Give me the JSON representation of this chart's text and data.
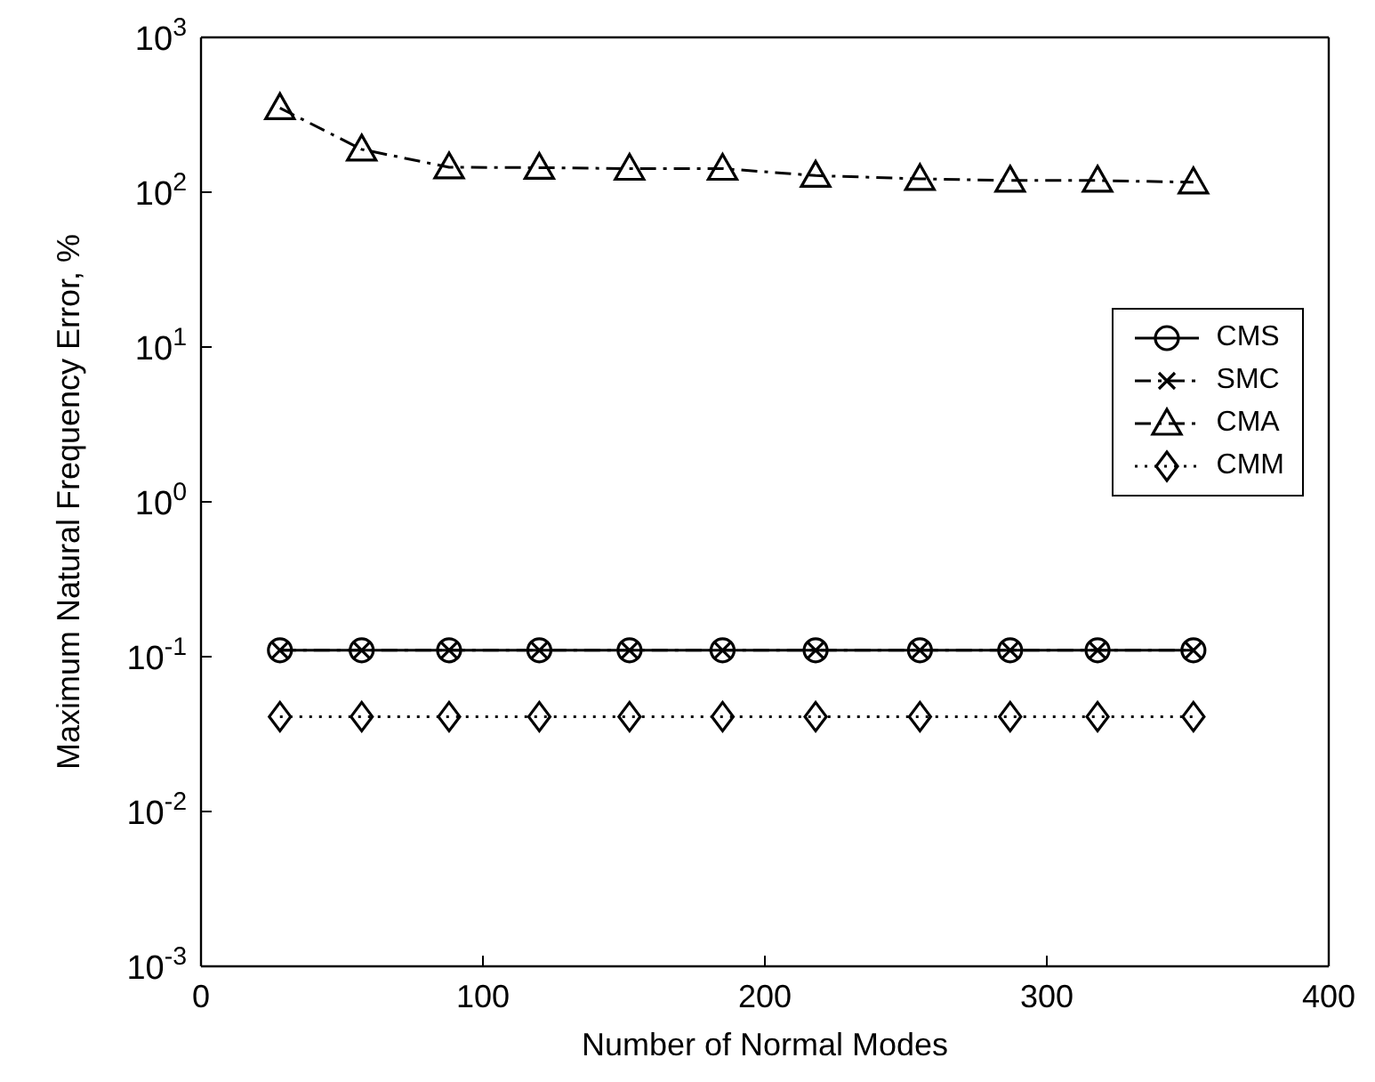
{
  "chart_data": {
    "type": "line",
    "xlabel": "Number of Normal Modes",
    "ylabel": "Maximum Natural Frequency Error, %",
    "x": [
      28,
      57,
      88,
      120,
      152,
      185,
      218,
      255,
      287,
      318,
      352
    ],
    "series": [
      {
        "name": "CMS",
        "color": "#000000",
        "marker": "circle",
        "line_style": "solid",
        "values": [
          0.11,
          0.11,
          0.11,
          0.11,
          0.11,
          0.11,
          0.11,
          0.11,
          0.11,
          0.11,
          0.11
        ]
      },
      {
        "name": "SMC",
        "color": "#000000",
        "marker": "cross",
        "line_style": "dashed",
        "values": [
          0.11,
          0.11,
          0.11,
          0.11,
          0.11,
          0.11,
          0.11,
          0.11,
          0.11,
          0.11,
          0.11
        ]
      },
      {
        "name": "CMA",
        "color": "#000000",
        "marker": "triangle",
        "line_style": "dashed",
        "values": [
          350,
          189,
          145,
          144,
          142,
          142,
          128,
          122,
          119,
          119,
          116
        ]
      },
      {
        "name": "CMM",
        "color": "#000000",
        "marker": "diamond",
        "line_style": "dotted",
        "values": [
          0.041,
          0.041,
          0.041,
          0.041,
          0.041,
          0.041,
          0.041,
          0.041,
          0.041,
          0.041,
          0.041
        ]
      }
    ],
    "xlim": [
      0,
      400
    ],
    "xticks": [
      0,
      100,
      200,
      300,
      400
    ],
    "log": "y",
    "ylim": [
      0.001,
      1000
    ],
    "yticks": [
      {
        "value": 0.001,
        "label": "10$^{-3}$"
      },
      {
        "value": 0.01,
        "label": "10$^{-2}$"
      },
      {
        "value": 0.1,
        "label": "10$^{-1}$"
      },
      {
        "value": 1,
        "label": "10$^{0}$"
      },
      {
        "value": 10,
        "label": "10$^{1}$"
      },
      {
        "value": 100,
        "label": "10$^{2}$"
      },
      {
        "value": 1000,
        "label": "10$^{3}$"
      }
    ],
    "grid": false,
    "legend": "right"
  }
}
